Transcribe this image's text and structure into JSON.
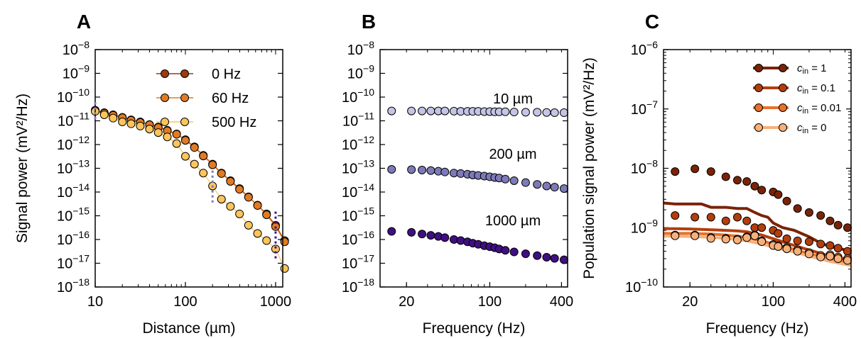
{
  "panels": [
    {
      "letter": "A"
    },
    {
      "letter": "B"
    },
    {
      "letter": "C"
    }
  ],
  "chart_data": [
    {
      "id": "A",
      "type": "scatter",
      "xlabel": "Distance (µm)",
      "ylabel": "Signal power (mV²/Hz)",
      "xscale": "log",
      "yscale": "log",
      "xlim": [
        10,
        1200
      ],
      "ylim": [
        1e-18,
        1e-08
      ],
      "xticks": [
        {
          "value": 10,
          "label": "10"
        },
        {
          "value": 100,
          "label": "100"
        },
        {
          "value": 1000,
          "label": "1000"
        }
      ],
      "legend_position": "top-right",
      "series": [
        {
          "name": "0 Hz",
          "color": "#9e3a0b",
          "x": [
            10,
            12.6,
            15.8,
            20,
            25,
            31.6,
            40,
            50,
            63,
            80,
            100,
            126,
            158,
            200,
            251,
            316,
            398,
            501,
            631,
            794,
            1000,
            1259
          ],
          "y": [
            2.8e-11,
            2.2e-11,
            1.8e-11,
            1.4e-11,
            1.1e-11,
            9e-12,
            7e-12,
            5.5e-12,
            4e-12,
            2.8e-12,
            1.6e-12,
            8e-13,
            3.5e-13,
            1.5e-13,
            6.3e-14,
            3e-14,
            1.4e-14,
            6.3e-15,
            2.8e-15,
            1.2e-15,
            4e-16,
            9e-17
          ]
        },
        {
          "name": "60 Hz",
          "color": "#e07b24",
          "x": [
            10,
            12.6,
            15.8,
            20,
            25,
            31.6,
            40,
            50,
            63,
            80,
            100,
            126,
            158,
            200,
            251,
            316,
            398,
            501,
            631,
            794,
            1000,
            1259
          ],
          "y": [
            2.7e-11,
            2.1e-11,
            1.7e-11,
            1.35e-11,
            1.05e-11,
            8.5e-12,
            6.8e-12,
            5.2e-12,
            3.8e-12,
            2.7e-12,
            1.5e-12,
            7.5e-13,
            3.3e-13,
            1.4e-13,
            6e-14,
            2.8e-14,
            1.3e-14,
            6e-15,
            2.7e-15,
            1.1e-15,
            3.5e-16,
            8e-17
          ]
        },
        {
          "name": "500 Hz",
          "color": "#fbc55c",
          "x": [
            10,
            12.6,
            15.8,
            20,
            25,
            31.6,
            40,
            50,
            63,
            80,
            100,
            126,
            158,
            200,
            251,
            316,
            398,
            501,
            631,
            794,
            1000,
            1259
          ],
          "y": [
            2.5e-11,
            1.8e-11,
            1.3e-11,
            9e-12,
            7.5e-12,
            6e-12,
            4.5e-12,
            3.2e-12,
            2.1e-12,
            1.1e-12,
            3.2e-13,
            1.5e-13,
            6.3e-14,
            1.8e-14,
            5e-15,
            2.5e-15,
            1.2e-15,
            4e-16,
            1.8e-16,
            9e-17,
            4e-17,
            6e-18
          ]
        }
      ]
    },
    {
      "id": "B",
      "type": "scatter",
      "xlabel": "Frequency (Hz)",
      "ylabel": "",
      "xscale": "log",
      "yscale": "log",
      "xlim": [
        12,
        450
      ],
      "ylim": [
        1e-18,
        1e-08
      ],
      "xticks": [
        {
          "value": 20,
          "label": "20"
        },
        {
          "value": 100,
          "label": "100"
        },
        {
          "value": 400,
          "label": "400"
        }
      ],
      "series": [
        {
          "name": "10 µm",
          "color": "#c4c4e6",
          "x": [
            15,
            22,
            27,
            32,
            37,
            42,
            50,
            57,
            65,
            72,
            80,
            90,
            100,
            110,
            120,
            135,
            160,
            200,
            250,
            300,
            350,
            420
          ],
          "y": [
            2.6e-11,
            2.6e-11,
            2.6e-11,
            2.6e-11,
            2.6e-11,
            2.6e-11,
            2.55e-11,
            2.5e-11,
            2.5e-11,
            2.5e-11,
            2.5e-11,
            2.45e-11,
            2.45e-11,
            2.4e-11,
            2.4e-11,
            2.4e-11,
            2.35e-11,
            2.3e-11,
            2.3e-11,
            2.25e-11,
            2.2e-11,
            2.2e-11
          ]
        },
        {
          "name": "200 µm",
          "color": "#7d7ab8",
          "x": [
            15,
            22,
            27,
            32,
            37,
            42,
            50,
            57,
            65,
            72,
            80,
            90,
            100,
            110,
            120,
            135,
            160,
            200,
            250,
            300,
            350,
            420
          ],
          "y": [
            9e-14,
            8.8e-14,
            8.4e-14,
            8e-14,
            7.5e-14,
            7e-14,
            6.3e-14,
            6e-14,
            5.6e-14,
            5.2e-14,
            5e-14,
            4.7e-14,
            4.4e-14,
            4.1e-14,
            3.9e-14,
            3.5e-14,
            3e-14,
            2.5e-14,
            2.1e-14,
            1.8e-14,
            1.6e-14,
            1.4e-14
          ]
        },
        {
          "name": "1000 µm",
          "color": "#3f0f82",
          "x": [
            15,
            22,
            27,
            32,
            37,
            42,
            50,
            57,
            65,
            72,
            80,
            90,
            100,
            110,
            120,
            135,
            160,
            200,
            250,
            300,
            350,
            420
          ],
          "y": [
            2.2e-16,
            2e-16,
            1.7e-16,
            1.5e-16,
            1.35e-16,
            1.2e-16,
            1e-16,
            9e-17,
            8e-17,
            7e-17,
            6.3e-17,
            5.5e-17,
            5e-17,
            4.5e-17,
            4e-17,
            3.5e-17,
            3e-17,
            2.5e-17,
            2.1e-17,
            1.8e-17,
            1.6e-17,
            1.4e-17
          ]
        }
      ],
      "annotations": [
        "10 µm",
        "200 µm",
        "1000 µm"
      ]
    },
    {
      "id": "C",
      "type": "scatter",
      "xlabel": "Frequency (Hz)",
      "ylabel": "Population signal power (mV²/Hz)",
      "xscale": "log",
      "yscale": "log",
      "xlim": [
        12,
        450
      ],
      "ylim": [
        1e-10,
        1e-06
      ],
      "xticks": [
        {
          "value": 20,
          "label": "20"
        },
        {
          "value": 100,
          "label": "100"
        },
        {
          "value": 400,
          "label": "400"
        }
      ],
      "legend_position": "top-right",
      "series": [
        {
          "name_prefix": "c",
          "name_sub": "in",
          "name_value": "= 1",
          "color": "#7a2306",
          "x": [
            15,
            22,
            30,
            40,
            50,
            60,
            70,
            80,
            100,
            110,
            130,
            160,
            200,
            250,
            300,
            350,
            420
          ],
          "y": [
            8.8e-09,
            9.8e-09,
            8.8e-09,
            7.2e-09,
            6.3e-09,
            6e-09,
            5e-09,
            4.3e-09,
            4e-09,
            3.6e-09,
            2.8e-09,
            2.1e-09,
            1.8e-09,
            1.6e-09,
            1.3e-09,
            1.1e-09,
            1e-09
          ],
          "line_x": [
            12,
            15,
            20,
            25,
            30,
            40,
            50,
            60,
            70,
            80,
            90,
            100,
            120,
            150,
            200,
            250,
            300,
            350,
            450
          ],
          "line_y": [
            2.6e-09,
            2.5e-09,
            2.5e-09,
            2.5e-09,
            2.2e-09,
            2.2e-09,
            2.1e-09,
            2.1e-09,
            1.8e-09,
            1.6e-09,
            1.5e-09,
            1.2e-09,
            1e-09,
            9e-10,
            7e-10,
            5.5e-10,
            4.8e-10,
            4.5e-10,
            4e-10
          ]
        },
        {
          "name_prefix": "c",
          "name_sub": "in",
          "name_value": "= 0.1",
          "color": "#b33e0d",
          "x": [
            15,
            22,
            30,
            40,
            50,
            60,
            70,
            80,
            100,
            110,
            130,
            160,
            200,
            250,
            300,
            350,
            420
          ],
          "y": [
            1.6e-09,
            1.5e-09,
            1.5e-09,
            1.3e-09,
            1.5e-09,
            1.3e-09,
            1e-09,
            1e-09,
            9e-10,
            8e-10,
            6.5e-10,
            6e-10,
            5.8e-10,
            5.3e-10,
            5e-10,
            4.5e-10,
            4e-10
          ],
          "line_x": [
            12,
            15,
            20,
            30,
            40,
            50,
            60,
            80,
            100,
            150,
            200,
            300,
            450
          ],
          "line_y": [
            9.6e-10,
            9.6e-10,
            9.5e-10,
            9.2e-10,
            9e-10,
            8.8e-10,
            8.5e-10,
            7.5e-10,
            6.5e-10,
            5e-10,
            4.2e-10,
            3.3e-10,
            2.8e-10
          ]
        },
        {
          "name_prefix": "c",
          "name_sub": "in",
          "name_value": "= 0.01",
          "color": "#e8712a",
          "x": [
            15,
            22,
            30,
            40,
            50,
            60,
            70,
            80,
            100,
            110,
            130,
            160,
            200,
            250,
            300,
            350,
            420
          ],
          "y": [
            7.5e-10,
            7.5e-10,
            6.8e-10,
            6.6e-10,
            6.4e-10,
            7e-10,
            7.5e-10,
            6e-10,
            5.2e-10,
            5e-10,
            4.6e-10,
            4.2e-10,
            3.8e-10,
            3.4e-10,
            3.5e-10,
            3.2e-10,
            3e-10
          ],
          "line_x": [
            12,
            15,
            20,
            30,
            40,
            50,
            60,
            80,
            100,
            150,
            200,
            300,
            450
          ],
          "line_y": [
            8e-10,
            8e-10,
            8e-10,
            7.8e-10,
            7.5e-10,
            7.2e-10,
            6.8e-10,
            6e-10,
            5.3e-10,
            4.3e-10,
            3.6e-10,
            3e-10,
            2.5e-10
          ]
        },
        {
          "name_prefix": "c",
          "name_sub": "in",
          "name_value": "= 0",
          "color": "#f7b07a",
          "x": [
            15,
            22,
            30,
            40,
            50,
            60,
            70,
            80,
            100,
            110,
            130,
            160,
            200,
            250,
            300,
            350,
            420
          ],
          "y": [
            7.3e-10,
            7.3e-10,
            6.6e-10,
            6.4e-10,
            6.2e-10,
            6.8e-10,
            7.3e-10,
            5.8e-10,
            5e-10,
            4.8e-10,
            4.4e-10,
            4e-10,
            3.6e-10,
            3.2e-10,
            3.3e-10,
            3e-10,
            2.8e-10
          ],
          "line_x": [
            12,
            15,
            20,
            30,
            40,
            50,
            60,
            80,
            100,
            150,
            200,
            300,
            450
          ],
          "line_y": [
            7.2e-10,
            7.2e-10,
            7.1e-10,
            6.9e-10,
            6.6e-10,
            6.3e-10,
            6e-10,
            5.3e-10,
            4.7e-10,
            3.9e-10,
            3.3e-10,
            2.7e-10,
            2.3e-10
          ]
        }
      ]
    }
  ]
}
